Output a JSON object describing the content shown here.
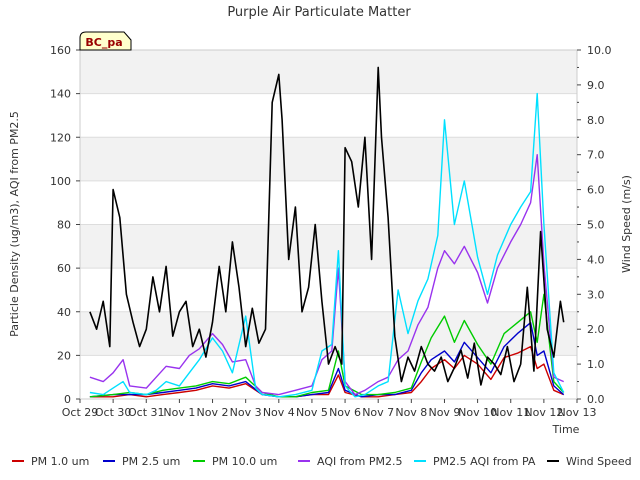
{
  "chart_data": {
    "type": "line",
    "title": "Purple Air Particulate Matter",
    "xlabel": "Time",
    "ylabel": "Particle Density (ug/m3), AQI from PM2.5",
    "y2label": "Wind Speed (m/s)",
    "ylim": [
      0,
      160
    ],
    "y2lim": [
      0,
      10
    ],
    "yticks": [
      0,
      20,
      40,
      60,
      80,
      100,
      120,
      140,
      160
    ],
    "y2ticks": [
      "0.0",
      "1.0",
      "2.0",
      "3.0",
      "4.0",
      "5.0",
      "6.0",
      "7.0",
      "8.0",
      "9.0",
      "10.0"
    ],
    "xlim": [
      0,
      15
    ],
    "xticks": [
      "Oct 29",
      "Oct 30",
      "Oct 31",
      "Nov 1",
      "Nov 2",
      "Nov 3",
      "Nov 4",
      "Nov 5",
      "Nov 6",
      "Nov 7",
      "Nov 8",
      "Nov 9",
      "Nov 10",
      "Nov 11",
      "Nov 12",
      "Nov 13"
    ],
    "station_label": "BC_pa",
    "grid": "horizontal bands",
    "legend": "bottom",
    "series": [
      {
        "name": "PM 1.0 um",
        "color": "#cc0000",
        "axis": "left",
        "x": [
          0.3,
          1.0,
          1.5,
          2.0,
          2.5,
          3.0,
          3.5,
          4.0,
          4.5,
          5.0,
          5.5,
          6.0,
          6.5,
          7.0,
          7.5,
          7.8,
          8.0,
          8.5,
          9.0,
          9.5,
          10.0,
          10.3,
          10.6,
          11.0,
          11.3,
          11.6,
          12.0,
          12.4,
          12.8,
          13.2,
          13.6,
          13.8,
          14.0,
          14.3,
          14.6
        ],
        "values": [
          1,
          1,
          2,
          1,
          2,
          3,
          4,
          6,
          5,
          7,
          2,
          1,
          1,
          2,
          2,
          11,
          3,
          1,
          1,
          2,
          3,
          8,
          14,
          18,
          14,
          20,
          16,
          9,
          19,
          21,
          24,
          14,
          16,
          4,
          2
        ]
      },
      {
        "name": "PM 2.5 um",
        "color": "#0000cc",
        "axis": "left",
        "x": [
          0.3,
          1.0,
          1.5,
          2.0,
          2.5,
          3.0,
          3.5,
          4.0,
          4.5,
          5.0,
          5.5,
          6.0,
          6.5,
          7.0,
          7.5,
          7.8,
          8.0,
          8.5,
          9.0,
          9.5,
          10.0,
          10.3,
          10.6,
          11.0,
          11.3,
          11.6,
          12.0,
          12.4,
          12.8,
          13.2,
          13.6,
          13.8,
          14.0,
          14.3,
          14.6
        ],
        "values": [
          1,
          2,
          2,
          2,
          3,
          4,
          5,
          7,
          6,
          8,
          2,
          1,
          1,
          2,
          3,
          14,
          4,
          1,
          2,
          2,
          4,
          12,
          18,
          22,
          17,
          26,
          19,
          12,
          24,
          30,
          35,
          20,
          22,
          6,
          2
        ]
      },
      {
        "name": "PM 10.0 um",
        "color": "#00cc00",
        "axis": "left",
        "x": [
          0.3,
          1.0,
          1.5,
          2.0,
          2.5,
          3.0,
          3.5,
          4.0,
          4.5,
          5.0,
          5.5,
          6.0,
          6.5,
          7.0,
          7.5,
          7.8,
          8.0,
          8.5,
          9.0,
          9.5,
          10.0,
          10.3,
          10.6,
          11.0,
          11.3,
          11.6,
          12.0,
          12.4,
          12.8,
          13.2,
          13.6,
          13.8,
          14.0,
          14.3,
          14.6
        ],
        "values": [
          1,
          2,
          3,
          2,
          4,
          5,
          6,
          8,
          7,
          10,
          3,
          1,
          1,
          3,
          4,
          22,
          6,
          2,
          2,
          3,
          5,
          17,
          28,
          38,
          26,
          36,
          25,
          16,
          30,
          35,
          40,
          26,
          48,
          8,
          3
        ]
      },
      {
        "name": "AQI from PM2.5",
        "color": "#9933ee",
        "axis": "left",
        "x": [
          0.3,
          0.7,
          1.0,
          1.3,
          1.5,
          2.0,
          2.3,
          2.6,
          3.0,
          3.3,
          3.6,
          4.0,
          4.3,
          4.6,
          5.0,
          5.3,
          5.5,
          6.0,
          6.5,
          7.0,
          7.3,
          7.6,
          7.8,
          8.0,
          8.3,
          8.6,
          9.0,
          9.3,
          9.6,
          9.9,
          10.2,
          10.5,
          10.8,
          11.0,
          11.3,
          11.6,
          12.0,
          12.3,
          12.6,
          13.0,
          13.3,
          13.6,
          13.8,
          14.0,
          14.3,
          14.6
        ],
        "values": [
          10,
          8,
          12,
          18,
          6,
          5,
          10,
          15,
          14,
          20,
          23,
          30,
          25,
          17,
          18,
          6,
          3,
          2,
          4,
          6,
          18,
          22,
          60,
          8,
          2,
          4,
          8,
          10,
          18,
          22,
          34,
          42,
          60,
          68,
          62,
          70,
          58,
          44,
          60,
          72,
          80,
          90,
          112,
          62,
          10,
          8
        ]
      },
      {
        "name": "PM2.5 AQI from PA",
        "color": "#00e0ff",
        "axis": "left",
        "x": [
          0.3,
          0.7,
          1.0,
          1.3,
          1.5,
          2.0,
          2.3,
          2.6,
          3.0,
          3.3,
          3.6,
          4.0,
          4.3,
          4.6,
          5.0,
          5.3,
          5.5,
          6.0,
          6.5,
          7.0,
          7.3,
          7.6,
          7.8,
          8.0,
          8.3,
          8.6,
          9.0,
          9.3,
          9.6,
          9.9,
          10.2,
          10.5,
          10.8,
          11.0,
          11.3,
          11.6,
          12.0,
          12.3,
          12.6,
          13.0,
          13.3,
          13.6,
          13.8,
          14.0,
          14.3,
          14.6
        ],
        "values": [
          3,
          2,
          5,
          8,
          3,
          2,
          4,
          8,
          6,
          12,
          18,
          28,
          22,
          12,
          38,
          5,
          2,
          1,
          2,
          4,
          22,
          25,
          68,
          6,
          1,
          2,
          6,
          8,
          50,
          30,
          45,
          55,
          75,
          128,
          80,
          100,
          65,
          48,
          66,
          80,
          88,
          95,
          140,
          80,
          12,
          3
        ]
      },
      {
        "name": "Wind Speed",
        "color": "#000000",
        "axis": "right",
        "x": [
          0.3,
          0.5,
          0.7,
          0.9,
          1.0,
          1.2,
          1.4,
          1.6,
          1.8,
          2.0,
          2.2,
          2.4,
          2.6,
          2.8,
          3.0,
          3.2,
          3.4,
          3.6,
          3.8,
          4.0,
          4.2,
          4.4,
          4.6,
          4.8,
          5.0,
          5.2,
          5.4,
          5.6,
          5.8,
          6.0,
          6.1,
          6.3,
          6.5,
          6.7,
          6.9,
          7.1,
          7.3,
          7.5,
          7.7,
          7.9,
          8.0,
          8.2,
          8.4,
          8.6,
          8.8,
          9.0,
          9.1,
          9.3,
          9.5,
          9.7,
          9.9,
          10.1,
          10.3,
          10.5,
          10.7,
          10.9,
          11.1,
          11.3,
          11.5,
          11.7,
          11.9,
          12.1,
          12.3,
          12.5,
          12.7,
          12.9,
          13.1,
          13.3,
          13.5,
          13.7,
          13.9,
          14.1,
          14.3,
          14.5,
          14.6
        ],
        "values": [
          2.5,
          2.0,
          2.8,
          1.5,
          6.0,
          5.2,
          3.0,
          2.2,
          1.5,
          2.0,
          3.5,
          2.5,
          3.8,
          1.8,
          2.5,
          2.8,
          1.5,
          2.0,
          1.2,
          2.2,
          3.8,
          2.5,
          4.5,
          3.2,
          1.5,
          2.6,
          1.6,
          2.0,
          8.5,
          9.3,
          8.0,
          4.0,
          5.5,
          2.5,
          3.2,
          5.0,
          2.8,
          1.0,
          1.5,
          1.0,
          7.2,
          6.8,
          5.5,
          7.5,
          4.0,
          9.5,
          7.5,
          5.2,
          1.8,
          0.5,
          1.2,
          0.8,
          1.5,
          1.0,
          0.8,
          1.2,
          0.5,
          0.9,
          1.4,
          0.6,
          1.6,
          0.4,
          1.2,
          1.0,
          0.7,
          1.5,
          0.5,
          1.0,
          3.2,
          0.8,
          4.8,
          2.0,
          1.2,
          2.8,
          2.2
        ]
      }
    ]
  }
}
